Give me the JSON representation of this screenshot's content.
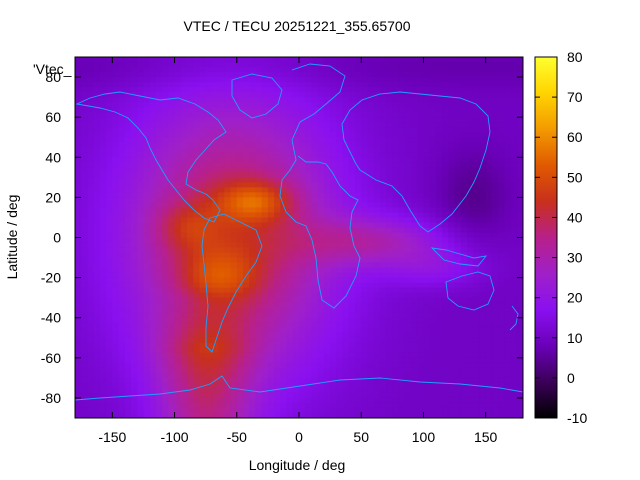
{
  "chart_data": {
    "type": "heatmap",
    "title": "VTEC / TECU 20251221_355.65700",
    "xlabel": "Longitude / deg",
    "ylabel": "Latitude / deg",
    "xlim": [
      -180,
      180
    ],
    "ylim": [
      -90,
      90
    ],
    "xticks": [
      -150,
      -100,
      -50,
      0,
      50,
      100,
      150
    ],
    "yticks": [
      -80,
      -60,
      -40,
      -20,
      0,
      20,
      40,
      60,
      80
    ],
    "legend_label": "'Vtec_",
    "colorbar": {
      "min": -10,
      "max": 80,
      "ticks": [
        -10,
        0,
        10,
        20,
        30,
        40,
        50,
        60,
        70,
        80
      ],
      "palette": [
        "#000000",
        "#3b0058",
        "#6a00b8",
        "#8a10f0",
        "#a020c8",
        "#b8208a",
        "#c8301c",
        "#e05a00",
        "#f39a00",
        "#ffd400",
        "#ffff30"
      ]
    },
    "coastline_color": "#1ea0ff",
    "grid": false
  }
}
